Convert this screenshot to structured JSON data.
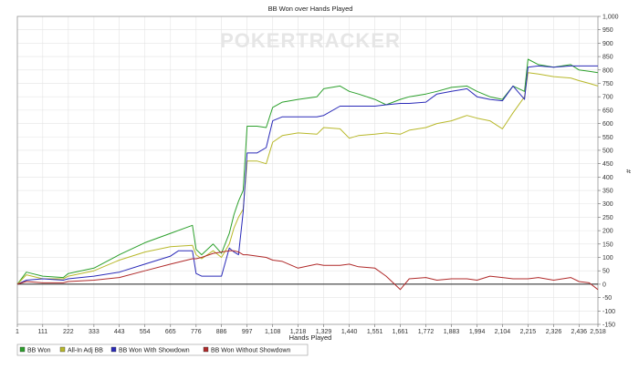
{
  "chart_data": {
    "type": "line",
    "title": "BB Won over Hands Played",
    "xlabel": "Hands Played",
    "ylabel": "#",
    "watermark": "POKERTRACKER",
    "grid": true,
    "legend_position": "bottom",
    "x_ticks": [
      "1",
      "111",
      "222",
      "333",
      "443",
      "554",
      "665",
      "776",
      "886",
      "997",
      "1,108",
      "1,218",
      "1,329",
      "1,440",
      "1,551",
      "1,661",
      "1,772",
      "1,883",
      "1,994",
      "2,104",
      "2,215",
      "2,326",
      "2,436",
      "2,518"
    ],
    "y_ticks": [
      "-150",
      "-100",
      "-50",
      "0",
      "50",
      "100",
      "150",
      "200",
      "250",
      "300",
      "350",
      "400",
      "450",
      "500",
      "550",
      "600",
      "650",
      "700",
      "750",
      "800",
      "850",
      "900",
      "950",
      "1,000"
    ],
    "xlim": [
      1,
      2518
    ],
    "ylim": [
      -150,
      1000
    ],
    "series": [
      {
        "name": "BB Won",
        "color": "#2ca02c",
        "points": [
          [
            1,
            0
          ],
          [
            40,
            45
          ],
          [
            111,
            30
          ],
          [
            200,
            25
          ],
          [
            222,
            40
          ],
          [
            333,
            60
          ],
          [
            443,
            110
          ],
          [
            554,
            155
          ],
          [
            665,
            190
          ],
          [
            760,
            220
          ],
          [
            776,
            130
          ],
          [
            800,
            110
          ],
          [
            850,
            150
          ],
          [
            886,
            115
          ],
          [
            920,
            190
          ],
          [
            940,
            260
          ],
          [
            960,
            310
          ],
          [
            980,
            350
          ],
          [
            997,
            590
          ],
          [
            1040,
            590
          ],
          [
            1080,
            585
          ],
          [
            1108,
            660
          ],
          [
            1150,
            680
          ],
          [
            1218,
            690
          ],
          [
            1300,
            700
          ],
          [
            1329,
            730
          ],
          [
            1400,
            740
          ],
          [
            1440,
            720
          ],
          [
            1480,
            710
          ],
          [
            1551,
            690
          ],
          [
            1600,
            670
          ],
          [
            1661,
            690
          ],
          [
            1700,
            700
          ],
          [
            1772,
            710
          ],
          [
            1820,
            720
          ],
          [
            1883,
            735
          ],
          [
            1950,
            740
          ],
          [
            1994,
            720
          ],
          [
            2050,
            700
          ],
          [
            2104,
            690
          ],
          [
            2150,
            740
          ],
          [
            2200,
            720
          ],
          [
            2215,
            840
          ],
          [
            2260,
            820
          ],
          [
            2326,
            810
          ],
          [
            2400,
            820
          ],
          [
            2436,
            800
          ],
          [
            2480,
            795
          ],
          [
            2518,
            790
          ]
        ]
      },
      {
        "name": "All-In Adj BB",
        "color": "#b8b82a",
        "points": [
          [
            1,
            0
          ],
          [
            40,
            35
          ],
          [
            111,
            20
          ],
          [
            200,
            20
          ],
          [
            222,
            30
          ],
          [
            333,
            50
          ],
          [
            443,
            90
          ],
          [
            554,
            120
          ],
          [
            665,
            140
          ],
          [
            760,
            145
          ],
          [
            776,
            110
          ],
          [
            800,
            95
          ],
          [
            850,
            125
          ],
          [
            886,
            100
          ],
          [
            920,
            150
          ],
          [
            940,
            210
          ],
          [
            960,
            250
          ],
          [
            980,
            280
          ],
          [
            997,
            460
          ],
          [
            1040,
            460
          ],
          [
            1080,
            450
          ],
          [
            1108,
            530
          ],
          [
            1150,
            555
          ],
          [
            1218,
            565
          ],
          [
            1300,
            560
          ],
          [
            1329,
            585
          ],
          [
            1400,
            580
          ],
          [
            1440,
            545
          ],
          [
            1480,
            555
          ],
          [
            1551,
            560
          ],
          [
            1600,
            565
          ],
          [
            1661,
            560
          ],
          [
            1700,
            575
          ],
          [
            1772,
            585
          ],
          [
            1820,
            600
          ],
          [
            1883,
            610
          ],
          [
            1950,
            630
          ],
          [
            1994,
            620
          ],
          [
            2050,
            610
          ],
          [
            2104,
            580
          ],
          [
            2150,
            640
          ],
          [
            2200,
            700
          ],
          [
            2215,
            790
          ],
          [
            2260,
            785
          ],
          [
            2326,
            775
          ],
          [
            2400,
            770
          ],
          [
            2436,
            760
          ],
          [
            2480,
            750
          ],
          [
            2518,
            740
          ]
        ]
      },
      {
        "name": "BB Won With Showdown",
        "color": "#2a2ab8",
        "points": [
          [
            1,
            0
          ],
          [
            40,
            15
          ],
          [
            111,
            20
          ],
          [
            200,
            15
          ],
          [
            222,
            20
          ],
          [
            333,
            30
          ],
          [
            443,
            45
          ],
          [
            554,
            75
          ],
          [
            665,
            105
          ],
          [
            700,
            125
          ],
          [
            760,
            125
          ],
          [
            776,
            40
          ],
          [
            800,
            30
          ],
          [
            850,
            30
          ],
          [
            886,
            30
          ],
          [
            920,
            135
          ],
          [
            940,
            120
          ],
          [
            960,
            110
          ],
          [
            980,
            270
          ],
          [
            997,
            490
          ],
          [
            1040,
            490
          ],
          [
            1080,
            510
          ],
          [
            1108,
            610
          ],
          [
            1150,
            625
          ],
          [
            1218,
            625
          ],
          [
            1300,
            625
          ],
          [
            1329,
            630
          ],
          [
            1400,
            665
          ],
          [
            1440,
            665
          ],
          [
            1480,
            665
          ],
          [
            1551,
            665
          ],
          [
            1600,
            670
          ],
          [
            1661,
            675
          ],
          [
            1700,
            675
          ],
          [
            1772,
            680
          ],
          [
            1820,
            710
          ],
          [
            1883,
            720
          ],
          [
            1950,
            730
          ],
          [
            1994,
            700
          ],
          [
            2050,
            690
          ],
          [
            2104,
            685
          ],
          [
            2150,
            740
          ],
          [
            2200,
            690
          ],
          [
            2215,
            810
          ],
          [
            2260,
            815
          ],
          [
            2326,
            810
          ],
          [
            2400,
            815
          ],
          [
            2436,
            815
          ],
          [
            2480,
            815
          ],
          [
            2518,
            815
          ]
        ]
      },
      {
        "name": "BB Won Without Showdown",
        "color": "#b02a2a",
        "points": [
          [
            1,
            0
          ],
          [
            40,
            10
          ],
          [
            111,
            5
          ],
          [
            200,
            5
          ],
          [
            222,
            10
          ],
          [
            333,
            15
          ],
          [
            443,
            25
          ],
          [
            554,
            50
          ],
          [
            665,
            75
          ],
          [
            760,
            95
          ],
          [
            776,
            95
          ],
          [
            800,
            100
          ],
          [
            850,
            115
          ],
          [
            886,
            120
          ],
          [
            920,
            125
          ],
          [
            940,
            125
          ],
          [
            960,
            120
          ],
          [
            980,
            110
          ],
          [
            997,
            110
          ],
          [
            1040,
            105
          ],
          [
            1080,
            100
          ],
          [
            1108,
            90
          ],
          [
            1150,
            85
          ],
          [
            1218,
            60
          ],
          [
            1300,
            75
          ],
          [
            1329,
            70
          ],
          [
            1400,
            70
          ],
          [
            1440,
            75
          ],
          [
            1480,
            65
          ],
          [
            1551,
            60
          ],
          [
            1600,
            30
          ],
          [
            1661,
            -20
          ],
          [
            1700,
            20
          ],
          [
            1772,
            25
          ],
          [
            1820,
            15
          ],
          [
            1883,
            20
          ],
          [
            1950,
            20
          ],
          [
            1994,
            15
          ],
          [
            2050,
            30
          ],
          [
            2104,
            25
          ],
          [
            2150,
            20
          ],
          [
            2200,
            20
          ],
          [
            2215,
            20
          ],
          [
            2260,
            25
          ],
          [
            2326,
            15
          ],
          [
            2400,
            25
          ],
          [
            2436,
            10
          ],
          [
            2480,
            5
          ],
          [
            2518,
            -20
          ]
        ]
      }
    ]
  }
}
